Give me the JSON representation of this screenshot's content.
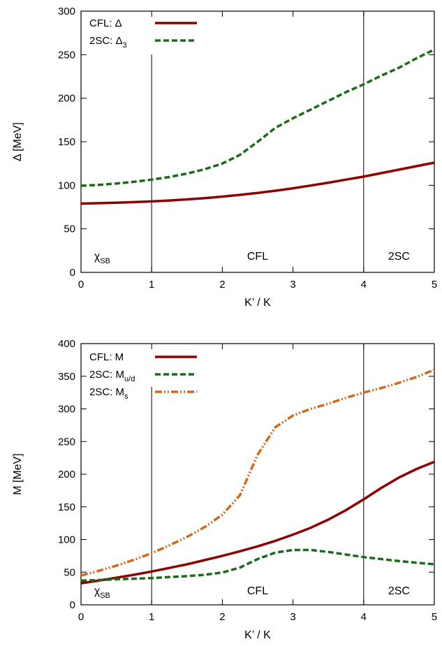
{
  "chart_data": [
    {
      "type": "line",
      "xlabel": "K’ / K",
      "ylabel": "Δ [MeV]",
      "xlim": [
        0,
        5
      ],
      "ylim": [
        0,
        300
      ],
      "xticks": [
        0,
        1,
        2,
        3,
        4,
        5
      ],
      "yticks": [
        0,
        50,
        100,
        150,
        200,
        250,
        300
      ],
      "legend_position": "top-left",
      "vlines": [
        1,
        4
      ],
      "regions": [
        {
          "label": "χ",
          "sub": "SB",
          "x": 0.3
        },
        {
          "label": "CFL",
          "sub": "",
          "x": 2.5
        },
        {
          "label": "2SC",
          "sub": "",
          "x": 4.5
        }
      ],
      "series": [
        {
          "name": "CFL: Δ",
          "name_sub": "",
          "color": "#8b0000",
          "dash": "solid",
          "x": [
            0,
            0.25,
            0.5,
            0.75,
            1,
            1.25,
            1.5,
            1.75,
            2,
            2.25,
            2.5,
            2.75,
            3,
            3.25,
            3.5,
            3.75,
            4,
            4.25,
            4.5,
            4.75,
            5
          ],
          "y": [
            79,
            79.5,
            80,
            80.7,
            81.5,
            82.5,
            83.8,
            85.3,
            87,
            89,
            91.3,
            93.8,
            96.6,
            99.7,
            103,
            106.5,
            110,
            114,
            118,
            122,
            126
          ]
        },
        {
          "name": "2SC: Δ",
          "name_sub": "3",
          "color": "#1a6b1a",
          "dash": "dashed",
          "x": [
            0,
            0.25,
            0.5,
            0.75,
            1,
            1.25,
            1.5,
            1.75,
            2,
            2.25,
            2.5,
            2.75,
            3,
            3.25,
            3.5,
            3.75,
            4,
            4.25,
            4.5,
            4.75,
            5
          ],
          "y": [
            99.5,
            100.5,
            102,
            104,
            106.5,
            109.5,
            113.5,
            118.5,
            125,
            135,
            150,
            166,
            177,
            187,
            197,
            207,
            216,
            226,
            235,
            246,
            256
          ]
        }
      ]
    },
    {
      "type": "line",
      "xlabel": "K’ / K",
      "ylabel": "M [MeV]",
      "xlim": [
        0,
        5
      ],
      "ylim": [
        0,
        400
      ],
      "xticks": [
        0,
        1,
        2,
        3,
        4,
        5
      ],
      "yticks": [
        0,
        50,
        100,
        150,
        200,
        250,
        300,
        350,
        400
      ],
      "legend_position": "top-left",
      "vlines": [
        1,
        4
      ],
      "regions": [
        {
          "label": "χ",
          "sub": "SB",
          "x": 0.3
        },
        {
          "label": "CFL",
          "sub": "",
          "x": 2.5
        },
        {
          "label": "2SC",
          "sub": "",
          "x": 4.5
        }
      ],
      "series": [
        {
          "name": "CFL: M",
          "name_sub": "",
          "color": "#8b0000",
          "dash": "solid",
          "x": [
            0,
            0.25,
            0.5,
            0.75,
            1,
            1.25,
            1.5,
            1.75,
            2,
            2.25,
            2.5,
            2.75,
            3,
            3.25,
            3.5,
            3.75,
            4,
            4.25,
            4.5,
            4.75,
            5
          ],
          "y": [
            33,
            37,
            41.5,
            46,
            51,
            56.5,
            62,
            68.5,
            75,
            82,
            89.5,
            98,
            107.5,
            118,
            130.5,
            145,
            161.5,
            179,
            195,
            208,
            219
          ]
        },
        {
          "name": "2SC: M",
          "name_sub": "u/d",
          "color": "#1a6b1a",
          "dash": "dashed",
          "x": [
            0,
            0.25,
            0.5,
            0.75,
            1,
            1.25,
            1.5,
            1.75,
            2,
            2.25,
            2.5,
            2.75,
            3,
            3.25,
            3.5,
            3.75,
            4,
            4.25,
            4.5,
            4.75,
            5
          ],
          "y": [
            37,
            38,
            39,
            40,
            41,
            42.5,
            44,
            46,
            49.5,
            57,
            70,
            80,
            84,
            84,
            81,
            77,
            73,
            70,
            67,
            64.5,
            62
          ]
        },
        {
          "name": "2SC: M",
          "name_sub": "s",
          "color": "#d2691e",
          "dash": "dashdotdot",
          "x": [
            0,
            0.25,
            0.5,
            0.75,
            1,
            1.25,
            1.5,
            1.75,
            2,
            2.25,
            2.5,
            2.75,
            3,
            3.25,
            3.5,
            3.75,
            4,
            4.25,
            4.5,
            4.75,
            5
          ],
          "y": [
            45,
            52,
            60,
            69,
            79,
            91,
            104,
            119,
            138,
            168,
            230,
            272,
            290,
            300,
            308,
            317,
            325,
            332,
            340,
            349,
            360
          ]
        }
      ]
    }
  ]
}
